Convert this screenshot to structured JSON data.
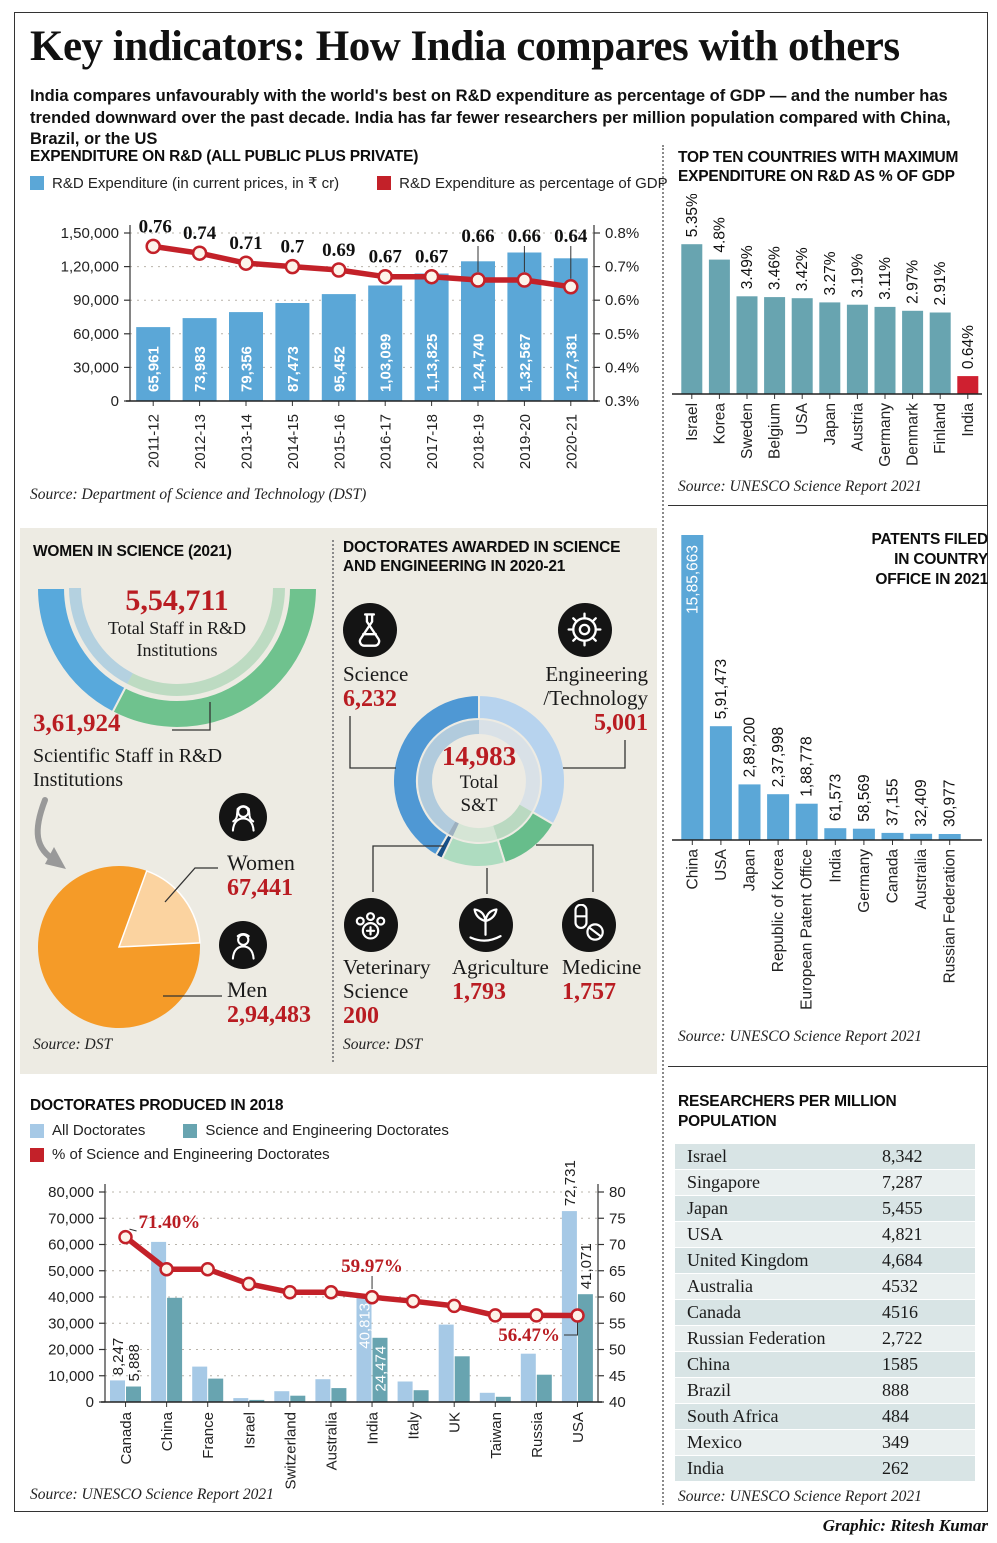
{
  "header": {
    "title": "Key indicators: How India compares with others",
    "subtitle": "India compares unfavourably with the world's best on R&D expenditure as percentage of GDP — and the number has trended downward over the past decade. India has far fewer researchers per million population compared with China, Brazil, or the US"
  },
  "footer": {
    "credit": "Graphic: Ritesh Kumar"
  },
  "colors": {
    "bar_blue": "#5ba7d7",
    "line_red": "#c32129",
    "teal": "#68a4b0",
    "india_red": "#cf2030",
    "panel_beige": "#edebe3",
    "accent_red_text": "#b91c22",
    "pie_orange": "#f59b28",
    "pie_light_orange": "#fbd3a0",
    "half_donut_blue": "#58a9dc",
    "half_donut_green": "#6fc28e",
    "all_doct_blue": "#a6c9e6"
  },
  "chart_data": [
    {
      "id": "rd_expenditure",
      "type": "bar+line",
      "title": "EXPENDITURE ON R&D (ALL PUBLIC PLUS PRIVATE)",
      "legend": [
        {
          "label": "R&D Expenditure (in current prices, in ₹ cr)",
          "color": "#5ba7d7"
        },
        {
          "label": "R&D Expenditure as percentage of GDP",
          "color": "#c32129"
        }
      ],
      "categories": [
        "2011-12",
        "2012-13",
        "2013-14",
        "2014-15",
        "2015-16",
        "2016-17",
        "2017-18",
        "2018-19",
        "2019-20",
        "2020-21"
      ],
      "bar_values": [
        65961,
        73983,
        79356,
        87473,
        95452,
        103099,
        113825,
        124740,
        132567,
        127381
      ],
      "bar_labels": [
        "65,961",
        "73,983",
        "79,356",
        "87,473",
        "95,452",
        "1,03,099",
        "1,13,825",
        "1,24,740",
        "1,32,567",
        "1,27,381"
      ],
      "line_values": [
        0.76,
        0.74,
        0.71,
        0.7,
        0.69,
        0.67,
        0.67,
        0.66,
        0.66,
        0.64
      ],
      "line_labels": [
        "0.76",
        "0.74",
        "0.71",
        "0.7",
        "0.69",
        "0.67",
        "0.67",
        "0.66",
        "0.66",
        "0.64"
      ],
      "left_axis_ticks": [
        "1,50,000",
        "1,20,000",
        "90,000",
        "60,000",
        "30,000",
        "0"
      ],
      "right_axis_ticks": [
        "0.8%",
        "0.7%",
        "0.6%",
        "0.5%",
        "0.4%",
        "0.3%"
      ],
      "left_max": 150000,
      "right_min": 0.3,
      "right_max": 0.8,
      "grid": true,
      "legend_position": "top",
      "source": "Source: Department of Science and Technology (DST)"
    },
    {
      "id": "top_ten_rd_gdp",
      "type": "bar",
      "title": "TOP TEN COUNTRIES WITH MAXIMUM EXPENDITURE ON R&D AS % OF GDP",
      "categories": [
        "Israel",
        "Korea",
        "Sweden",
        "Belgium",
        "USA",
        "Japan",
        "Austria",
        "Germany",
        "Denmark",
        "Finland",
        "India"
      ],
      "values": [
        5.35,
        4.8,
        3.49,
        3.46,
        3.42,
        3.27,
        3.19,
        3.11,
        2.97,
        2.91,
        0.64
      ],
      "labels": [
        "5.35%",
        "4.8%",
        "3.49%",
        "3.46%",
        "3.42%",
        "3.27%",
        "3.19%",
        "3.11%",
        "2.97%",
        "2.91%",
        "0.64%"
      ],
      "bar_color": "#68a4b0",
      "highlight_color": "#cf2030",
      "highlight_index": 10,
      "source": "Source: UNESCO Science Report 2021"
    },
    {
      "id": "women_in_science",
      "type": "donut+pie",
      "title": "WOMEN IN SCIENCE (2021)",
      "half_donut": {
        "total": {
          "value": 554711,
          "value_label": "5,54,711",
          "label": "Total Staff in R&D Institutions",
          "color": "#58a9dc"
        },
        "scientific": {
          "value": 361924,
          "value_label": "3,61,924",
          "label": "Scientific Staff in R&D Institutions",
          "color": "#6fc28e"
        }
      },
      "pie": {
        "slices": [
          {
            "label": "Men",
            "value": 294483,
            "value_label": "2,94,483",
            "color": "#f59b28"
          },
          {
            "label": "Women",
            "value": 67441,
            "value_label": "67,441",
            "color": "#fbd3a0"
          }
        ],
        "women_start_angle": 20
      },
      "source": "Source: DST"
    },
    {
      "id": "doctorates_awarded",
      "type": "donut",
      "title": "DOCTORATES AWARDED IN SCIENCE AND ENGINEERING IN 2020-21",
      "center": {
        "value": 14983,
        "value_label": "14,983",
        "label_line1": "Total",
        "label_line2": "S&T"
      },
      "segments": [
        {
          "name": "Engineering/Technology",
          "label_line1": "Engineering",
          "label_line2": "/Technology",
          "value": 5001,
          "value_label": "5,001",
          "color": "#b7d3ee"
        },
        {
          "name": "Medicine",
          "value": 1757,
          "value_label": "1,757",
          "color": "#67bd8b"
        },
        {
          "name": "Agriculture",
          "value": 1793,
          "value_label": "1,793",
          "color": "#aedcc0"
        },
        {
          "name": "Veterinary Science",
          "label_line1": "Veterinary",
          "label_line2": "Science",
          "value": 200,
          "value_label": "200",
          "color": "#174f87"
        },
        {
          "name": "Science",
          "value": 6232,
          "value_label": "6,232",
          "color": "#4f98d4"
        }
      ],
      "source": "Source: DST"
    },
    {
      "id": "patents_filed",
      "type": "bar",
      "title_lines": [
        "PATENTS FILED",
        "IN COUNTRY",
        "OFFICE IN 2021"
      ],
      "categories": [
        "China",
        "USA",
        "Japan",
        "Republic of Korea",
        "European Patent Office",
        "India",
        "Germany",
        "Canada",
        "Australia",
        "Russian Federation"
      ],
      "values": [
        1585663,
        591473,
        289200,
        237998,
        188778,
        61573,
        58569,
        37155,
        32409,
        30977
      ],
      "labels": [
        "15,85,663",
        "5,91,473",
        "2,89,200",
        "2,37,998",
        "1,88,778",
        "61,573",
        "58,569",
        "37,155",
        "32,409",
        "30,977"
      ],
      "bar_color": "#5ba7d7",
      "source": "Source: UNESCO Science Report 2021"
    },
    {
      "id": "doctorates_2018",
      "type": "grouped-bar+line",
      "title": "DOCTORATES PRODUCED IN 2018",
      "legend": [
        {
          "label": "All Doctorates",
          "color": "#a6c9e6"
        },
        {
          "label": "Science and Engineering Doctorates",
          "color": "#68a4b0"
        },
        {
          "label": "% of Science and Engineering Doctorates",
          "color": "#c32129"
        }
      ],
      "categories": [
        "Canada",
        "China",
        "France",
        "Israel",
        "Switzerland",
        "Australia",
        "India",
        "Italy",
        "UK",
        "Taiwan",
        "Russia",
        "USA"
      ],
      "series": [
        {
          "name": "All Doctorates",
          "values": [
            8247,
            61000,
            13500,
            1500,
            4100,
            8700,
            40813,
            7800,
            29500,
            3500,
            18400,
            72731
          ]
        },
        {
          "name": "Science and Engineering Doctorates",
          "values": [
            5888,
            39700,
            8900,
            800,
            2400,
            5300,
            24474,
            4500,
            17400,
            2000,
            10400,
            41071
          ]
        }
      ],
      "bar_value_labels": [
        {
          "cat": 0,
          "series": 0,
          "text": "8,247",
          "placement": "above"
        },
        {
          "cat": 0,
          "series": 1,
          "text": "5,888",
          "placement": "above"
        },
        {
          "cat": 6,
          "series": 0,
          "text": "40,813",
          "placement": "inside"
        },
        {
          "cat": 6,
          "series": 1,
          "text": "24,474",
          "placement": "inside"
        },
        {
          "cat": 11,
          "series": 0,
          "text": "72,731",
          "placement": "above"
        },
        {
          "cat": 11,
          "series": 1,
          "text": "41,071",
          "placement": "above"
        }
      ],
      "line": {
        "name": "% of Science and Engineering Doctorates",
        "values": [
          71.4,
          65.3,
          65.3,
          62.5,
          60.9,
          60.9,
          59.97,
          59.2,
          58.3,
          56.5,
          56.5,
          56.47
        ],
        "labeled": [
          {
            "index": 0,
            "text": "71.40%"
          },
          {
            "index": 6,
            "text": "59.97%"
          },
          {
            "index": 11,
            "text": "56.47%"
          }
        ]
      },
      "left_axis_ticks": [
        "80,000",
        "70,000",
        "60,000",
        "50,000",
        "40,000",
        "30,000",
        "20,000",
        "10,000",
        "0"
      ],
      "right_axis_ticks": [
        "80",
        "75",
        "70",
        "65",
        "60",
        "55",
        "50",
        "45",
        "40"
      ],
      "left_max": 80000,
      "right_min": 40,
      "right_max": 80,
      "grid": true,
      "legend_position": "top",
      "source": "Source: UNESCO Science Report 2021"
    },
    {
      "id": "researchers_per_million",
      "type": "table",
      "title": "RESEARCHERS PER MILLION POPULATION",
      "rows": [
        {
          "country": "Israel",
          "value": "8,342"
        },
        {
          "country": "Singapore",
          "value": "7,287"
        },
        {
          "country": "Japan",
          "value": "5,455"
        },
        {
          "country": "USA",
          "value": "4,821"
        },
        {
          "country": "United Kingdom",
          "value": "4,684"
        },
        {
          "country": "Australia",
          "value": "4532"
        },
        {
          "country": "Canada",
          "value": "4516"
        },
        {
          "country": "Russian Federation",
          "value": "2,722"
        },
        {
          "country": "China",
          "value": "1585"
        },
        {
          "country": "Brazil",
          "value": "888"
        },
        {
          "country": "South Africa",
          "value": "484"
        },
        {
          "country": "Mexico",
          "value": "349"
        },
        {
          "country": "India",
          "value": "262"
        }
      ],
      "source": "Source: UNESCO Science Report 2021"
    }
  ]
}
